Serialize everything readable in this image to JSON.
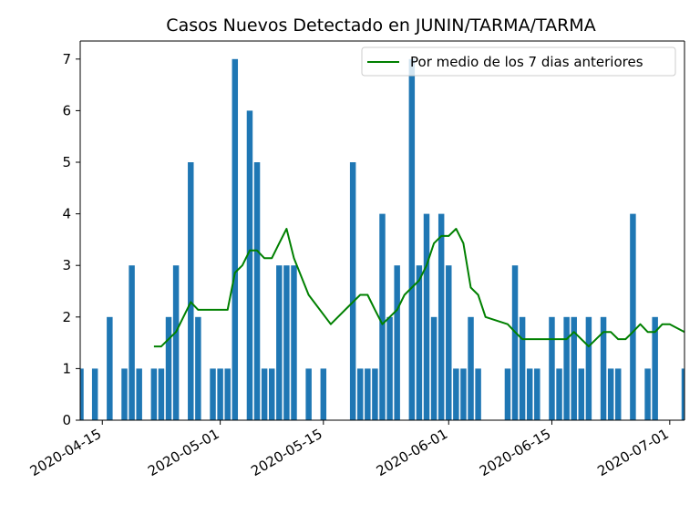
{
  "chart_data": {
    "type": "bar",
    "title": "Casos Nuevos Detectado en JUNIN/TARMA/TARMA",
    "x_tick_labels": [
      "2020-04-15",
      "2020-05-01",
      "2020-05-15",
      "2020-06-01",
      "2020-06-15",
      "2020-07-01"
    ],
    "y_tick_labels": [
      "0",
      "1",
      "2",
      "3",
      "4",
      "5",
      "6",
      "7"
    ],
    "xlim": [
      "2020-04-12",
      "2020-07-03"
    ],
    "ylim": [
      0,
      7.35
    ],
    "legend_position": "top-right",
    "bar_color": "#1f77b4",
    "line_color": "#008000",
    "series": [
      {
        "kind": "bar",
        "points": [
          [
            "2020-04-12",
            1
          ],
          [
            "2020-04-14",
            1
          ],
          [
            "2020-04-16",
            2
          ],
          [
            "2020-04-18",
            1
          ],
          [
            "2020-04-19",
            3
          ],
          [
            "2020-04-20",
            1
          ],
          [
            "2020-04-22",
            1
          ],
          [
            "2020-04-23",
            1
          ],
          [
            "2020-04-24",
            2
          ],
          [
            "2020-04-25",
            3
          ],
          [
            "2020-04-27",
            5
          ],
          [
            "2020-04-28",
            2
          ],
          [
            "2020-04-30",
            1
          ],
          [
            "2020-05-01",
            1
          ],
          [
            "2020-05-02",
            1
          ],
          [
            "2020-05-03",
            7
          ],
          [
            "2020-05-05",
            6
          ],
          [
            "2020-05-06",
            5
          ],
          [
            "2020-05-07",
            1
          ],
          [
            "2020-05-08",
            1
          ],
          [
            "2020-05-09",
            3
          ],
          [
            "2020-05-10",
            3
          ],
          [
            "2020-05-11",
            3
          ],
          [
            "2020-05-13",
            1
          ],
          [
            "2020-05-15",
            1
          ],
          [
            "2020-05-19",
            5
          ],
          [
            "2020-05-20",
            1
          ],
          [
            "2020-05-21",
            1
          ],
          [
            "2020-05-22",
            1
          ],
          [
            "2020-05-23",
            4
          ],
          [
            "2020-05-24",
            2
          ],
          [
            "2020-05-25",
            3
          ],
          [
            "2020-05-27",
            7
          ],
          [
            "2020-05-28",
            3
          ],
          [
            "2020-05-29",
            4
          ],
          [
            "2020-05-30",
            2
          ],
          [
            "2020-05-31",
            4
          ],
          [
            "2020-06-01",
            3
          ],
          [
            "2020-06-02",
            1
          ],
          [
            "2020-06-03",
            1
          ],
          [
            "2020-06-04",
            2
          ],
          [
            "2020-06-05",
            1
          ],
          [
            "2020-06-09",
            1
          ],
          [
            "2020-06-10",
            3
          ],
          [
            "2020-06-11",
            2
          ],
          [
            "2020-06-12",
            1
          ],
          [
            "2020-06-13",
            1
          ],
          [
            "2020-06-15",
            2
          ],
          [
            "2020-06-16",
            1
          ],
          [
            "2020-06-17",
            2
          ],
          [
            "2020-06-18",
            2
          ],
          [
            "2020-06-19",
            1
          ],
          [
            "2020-06-20",
            2
          ],
          [
            "2020-06-22",
            2
          ],
          [
            "2020-06-23",
            1
          ],
          [
            "2020-06-24",
            1
          ],
          [
            "2020-06-26",
            4
          ],
          [
            "2020-06-28",
            1
          ],
          [
            "2020-06-29",
            2
          ],
          [
            "2020-07-03",
            1
          ]
        ]
      },
      {
        "kind": "line",
        "name": "Por medio de los 7 dias anteriores",
        "points": [
          [
            "2020-04-22",
            1.43
          ],
          [
            "2020-04-23",
            1.43
          ],
          [
            "2020-04-24",
            1.57
          ],
          [
            "2020-04-25",
            1.71
          ],
          [
            "2020-04-26",
            2.0
          ],
          [
            "2020-04-27",
            2.29
          ],
          [
            "2020-04-28",
            2.14
          ],
          [
            "2020-05-02",
            2.14
          ],
          [
            "2020-05-03",
            2.86
          ],
          [
            "2020-05-04",
            3.0
          ],
          [
            "2020-05-05",
            3.29
          ],
          [
            "2020-05-06",
            3.29
          ],
          [
            "2020-05-07",
            3.14
          ],
          [
            "2020-05-08",
            3.14
          ],
          [
            "2020-05-09",
            3.43
          ],
          [
            "2020-05-10",
            3.71
          ],
          [
            "2020-05-11",
            3.14
          ],
          [
            "2020-05-13",
            2.43
          ],
          [
            "2020-05-16",
            1.86
          ],
          [
            "2020-05-19",
            2.29
          ],
          [
            "2020-05-20",
            2.43
          ],
          [
            "2020-05-21",
            2.43
          ],
          [
            "2020-05-22",
            2.14
          ],
          [
            "2020-05-23",
            1.86
          ],
          [
            "2020-05-24",
            2.0
          ],
          [
            "2020-05-25",
            2.14
          ],
          [
            "2020-05-26",
            2.43
          ],
          [
            "2020-05-27",
            2.57
          ],
          [
            "2020-05-28",
            2.71
          ],
          [
            "2020-05-29",
            3.0
          ],
          [
            "2020-05-30",
            3.43
          ],
          [
            "2020-05-31",
            3.57
          ],
          [
            "2020-06-01",
            3.57
          ],
          [
            "2020-06-02",
            3.71
          ],
          [
            "2020-06-03",
            3.43
          ],
          [
            "2020-06-04",
            2.57
          ],
          [
            "2020-06-05",
            2.43
          ],
          [
            "2020-06-06",
            2.0
          ],
          [
            "2020-06-09",
            1.86
          ],
          [
            "2020-06-10",
            1.71
          ],
          [
            "2020-06-11",
            1.57
          ],
          [
            "2020-06-12",
            1.57
          ],
          [
            "2020-06-17",
            1.57
          ],
          [
            "2020-06-18",
            1.71
          ],
          [
            "2020-06-19",
            1.57
          ],
          [
            "2020-06-20",
            1.43
          ],
          [
            "2020-06-21",
            1.57
          ],
          [
            "2020-06-22",
            1.71
          ],
          [
            "2020-06-23",
            1.71
          ],
          [
            "2020-06-24",
            1.57
          ],
          [
            "2020-06-25",
            1.57
          ],
          [
            "2020-06-26",
            1.71
          ],
          [
            "2020-06-27",
            1.86
          ],
          [
            "2020-06-28",
            1.71
          ],
          [
            "2020-06-29",
            1.71
          ],
          [
            "2020-06-30",
            1.86
          ],
          [
            "2020-07-01",
            1.86
          ],
          [
            "2020-07-03",
            1.71
          ]
        ]
      }
    ]
  }
}
